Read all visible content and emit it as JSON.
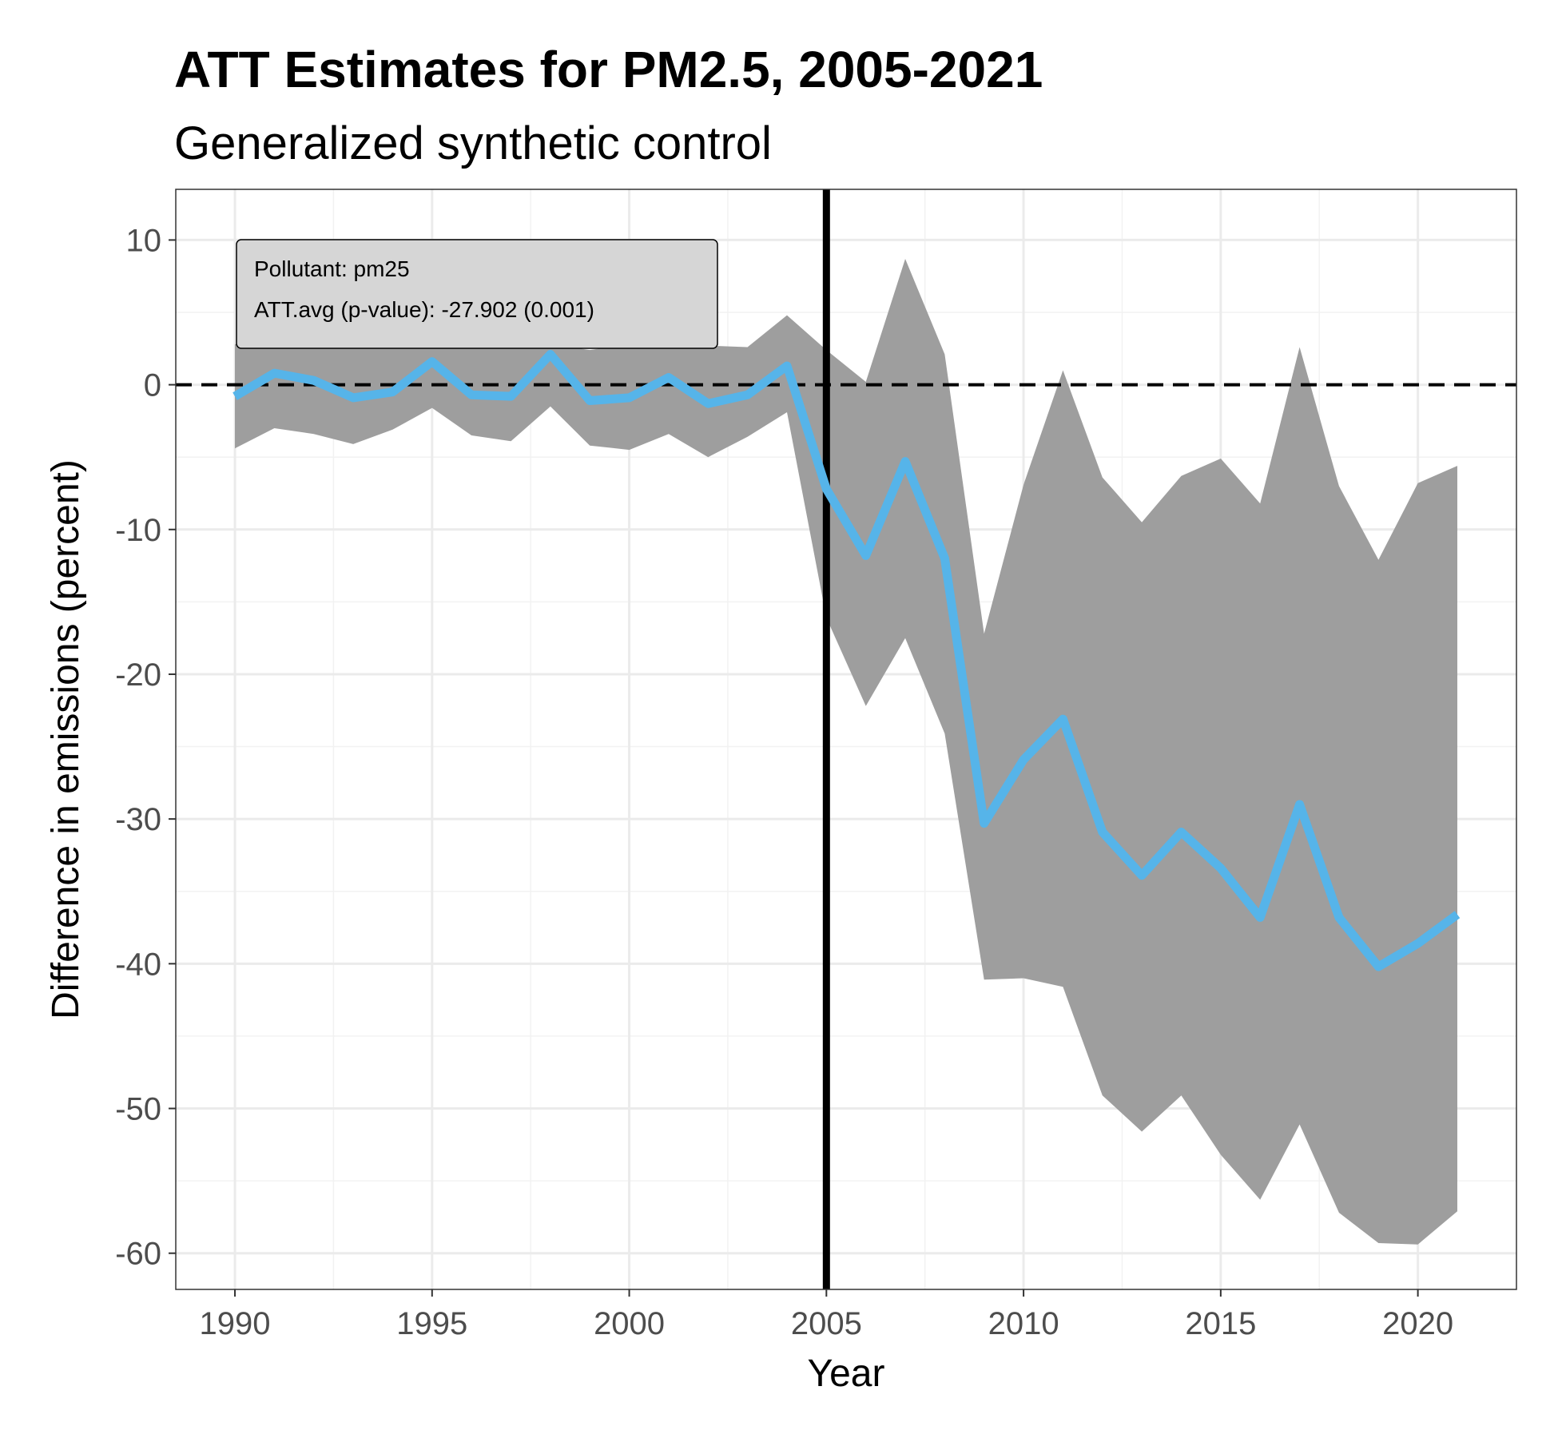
{
  "chart_data": {
    "type": "line",
    "title": "ATT Estimates for PM2.5, 2005-2021",
    "subtitle": "Generalized synthetic control",
    "xlabel": "Year",
    "ylabel": "Difference in emissions (percent)",
    "xlim": [
      1988.5,
      2022.5
    ],
    "ylim": [
      -62.5,
      13.5
    ],
    "xticks": [
      1990,
      1995,
      2000,
      2005,
      2010,
      2015,
      2020
    ],
    "yticks": [
      10,
      0,
      -10,
      -20,
      -30,
      -40,
      -50,
      -60
    ],
    "grid": true,
    "x": [
      1990,
      1991,
      1992,
      1993,
      1994,
      1995,
      1996,
      1997,
      1998,
      1999,
      2000,
      2001,
      2002,
      2003,
      2004,
      2005,
      2006,
      2007,
      2008,
      2009,
      2010,
      2011,
      2012,
      2013,
      2014,
      2015,
      2016,
      2017,
      2018,
      2019,
      2020,
      2021
    ],
    "series": [
      {
        "values": [
          -0.8,
          0.8,
          0.3,
          -0.9,
          -0.5,
          1.6,
          -0.7,
          -0.8,
          2.1,
          -1.1,
          -0.9,
          0.5,
          -1.3,
          -0.7,
          1.3,
          -7.2,
          -11.8,
          -5.3,
          -12.0,
          -30.3,
          -25.9,
          -23.1,
          -30.9,
          -33.9,
          -30.9,
          -33.4,
          -36.8,
          -29.0,
          -36.8,
          -40.2,
          -38.6,
          -36.6
        ],
        "color": "#56b4e9"
      }
    ],
    "band": {
      "lower": [
        -4.4,
        -3.0,
        -3.4,
        -4.1,
        -3.1,
        -1.6,
        -3.5,
        -3.9,
        -1.5,
        -4.2,
        -4.5,
        -3.4,
        -5.0,
        -3.6,
        -1.9,
        -16.1,
        -22.2,
        -17.5,
        -24.1,
        -41.1,
        -41.0,
        -41.6,
        -49.1,
        -51.6,
        -49.1,
        -53.2,
        -56.3,
        -51.1,
        -57.2,
        -59.3,
        -59.4,
        -57.1
      ],
      "upper": [
        2.8,
        2.8,
        2.8,
        2.8,
        2.8,
        2.8,
        2.8,
        2.8,
        2.8,
        2.4,
        2.8,
        2.8,
        2.7,
        2.6,
        4.8,
        2.4,
        0.2,
        8.7,
        2.1,
        -17.2,
        -6.9,
        1.0,
        -6.4,
        -9.5,
        -6.3,
        -5.1,
        -8.2,
        2.6,
        -7.0,
        -12.1,
        -6.8,
        -5.6
      ],
      "color": "#9e9e9e"
    },
    "treatment_year": 2005,
    "reference_line": 0,
    "annotation": {
      "line1": "Pollutant: pm25",
      "line2": "ATT.avg (p-value): -27.902 (0.001)"
    }
  }
}
